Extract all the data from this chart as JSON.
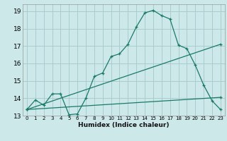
{
  "title": "",
  "xlabel": "Humidex (Indice chaleur)",
  "bg_color": "#cce8e8",
  "grid_color": "#aacccc",
  "line_color": "#1a7a6a",
  "xlim": [
    -0.5,
    23.5
  ],
  "ylim": [
    13,
    19.4
  ],
  "xtick_labels": [
    "0",
    "1",
    "2",
    "3",
    "4",
    "5",
    "6",
    "7",
    "8",
    "9",
    "10",
    "11",
    "12",
    "13",
    "14",
    "15",
    "16",
    "17",
    "18",
    "19",
    "20",
    "21",
    "22",
    "23"
  ],
  "xtick_pos": [
    0,
    1,
    2,
    3,
    4,
    5,
    6,
    7,
    8,
    9,
    10,
    11,
    12,
    13,
    14,
    15,
    16,
    17,
    18,
    19,
    20,
    21,
    22,
    23
  ],
  "yticks": [
    13,
    14,
    15,
    16,
    17,
    18,
    19
  ],
  "line1_x": [
    0,
    1,
    2,
    3,
    4,
    5,
    6,
    7,
    8,
    9,
    10,
    11,
    12,
    13,
    14,
    15,
    16,
    17,
    18,
    19,
    20,
    21,
    22,
    23
  ],
  "line1_y": [
    13.35,
    13.9,
    13.6,
    14.25,
    14.25,
    13.05,
    13.1,
    14.0,
    15.25,
    15.45,
    16.4,
    16.55,
    17.1,
    18.1,
    18.9,
    19.05,
    18.75,
    18.55,
    17.05,
    16.85,
    15.9,
    14.75,
    13.85,
    13.35
  ],
  "line2_x": [
    0,
    23
  ],
  "line2_y": [
    13.35,
    17.1
  ],
  "line3_x": [
    0,
    23
  ],
  "line3_y": [
    13.35,
    14.05
  ]
}
